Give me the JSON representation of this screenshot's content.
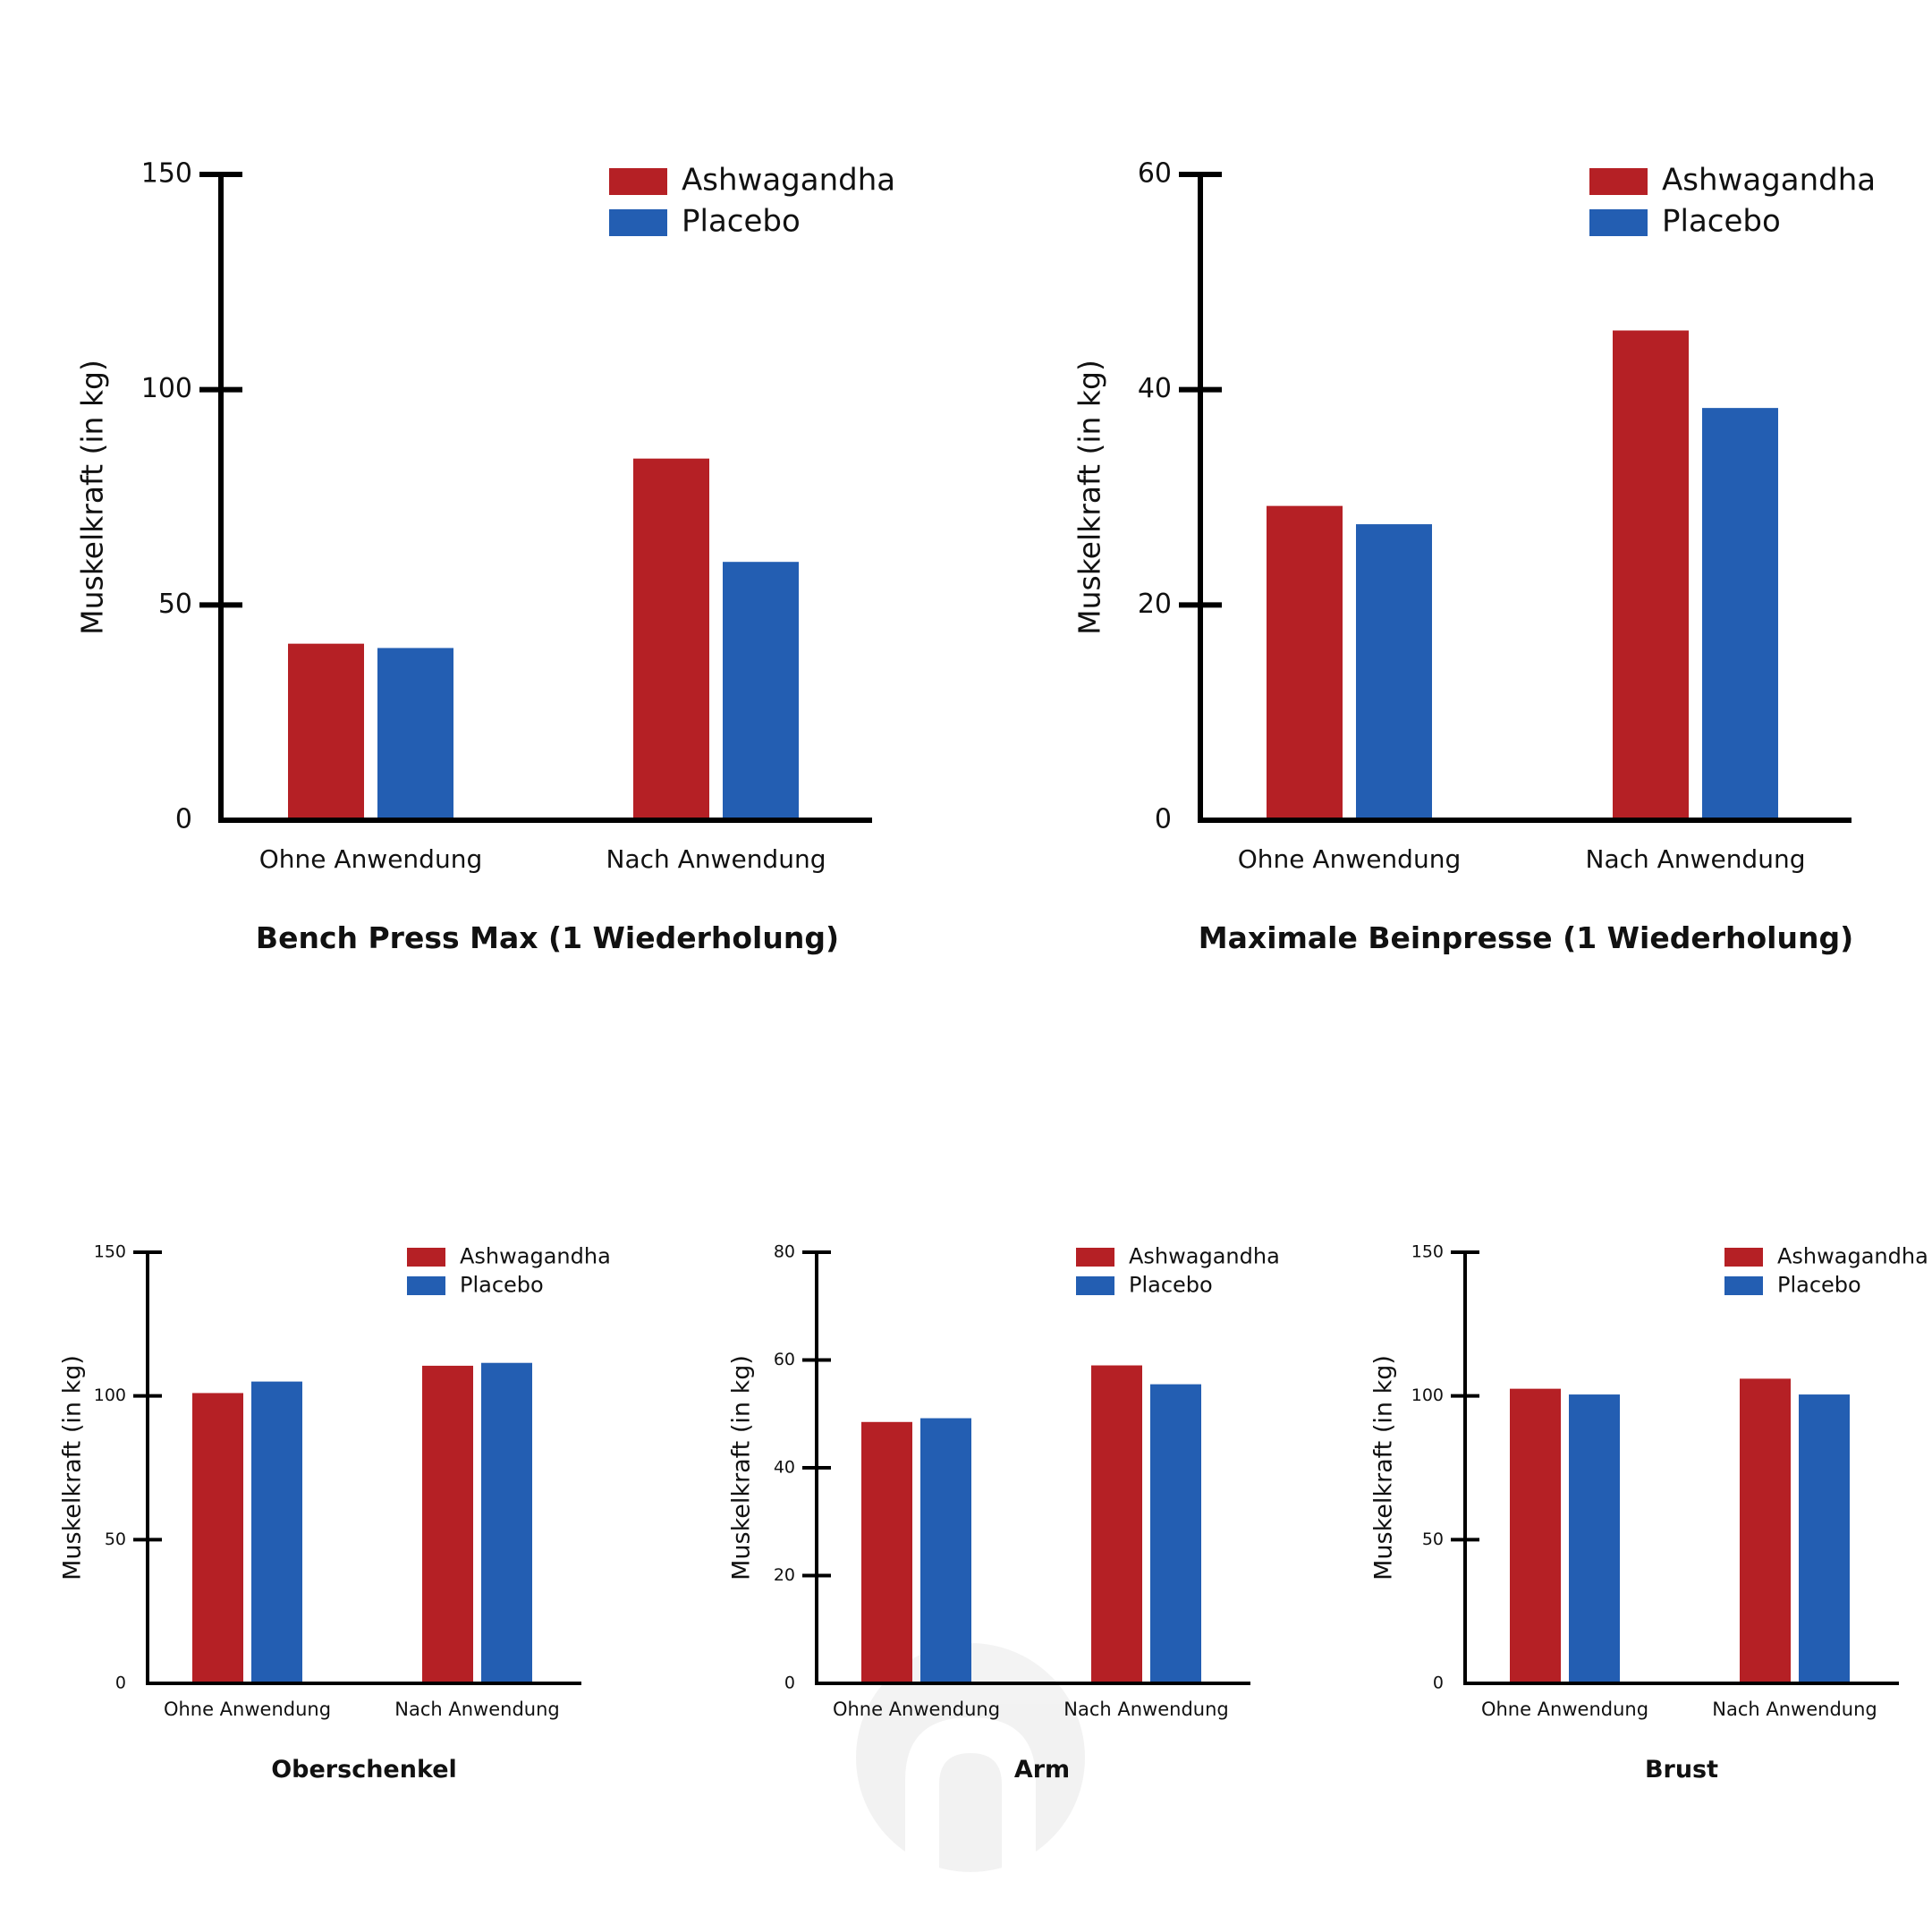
{
  "colors": {
    "ashwagandha": "#b52025",
    "placebo": "#235eb2",
    "axis": "#000000"
  },
  "chart_data": [
    {
      "type": "bar",
      "title": "Bench Press Max (1 Wiederholung)",
      "ylabel": "Muskelkraft (in kg)",
      "xlabel": "",
      "categories": [
        "Ohne Anwendung",
        "Nach Anwendung"
      ],
      "series": [
        {
          "name": "Ashwagandha",
          "values": [
            41,
            84
          ]
        },
        {
          "name": "Placebo",
          "values": [
            40,
            60
          ]
        }
      ],
      "ylim": [
        0,
        150
      ],
      "yticks": [
        0,
        50,
        100,
        150
      ],
      "legend": "top-right",
      "grid": false
    },
    {
      "type": "bar",
      "title": "Maximale Beinpresse (1 Wiederholung)",
      "ylabel": "Muskelkraft (in kg)",
      "xlabel": "",
      "categories": [
        "Ohne Anwendung",
        "Nach Anwendung"
      ],
      "series": [
        {
          "name": "Ashwagandha",
          "values": [
            29.2,
            45.5
          ]
        },
        {
          "name": "Placebo",
          "values": [
            27.5,
            38.3
          ]
        }
      ],
      "ylim": [
        0,
        60
      ],
      "yticks": [
        0,
        20,
        40,
        60
      ],
      "legend": "top-right",
      "grid": false
    },
    {
      "type": "bar",
      "title": "Oberschenkel",
      "ylabel": "Muskelkraft (in kg)",
      "xlabel": "",
      "categories": [
        "Ohne Anwendung",
        "Nach Anwendung"
      ],
      "series": [
        {
          "name": "Ashwagandha",
          "values": [
            101,
            110.5
          ]
        },
        {
          "name": "Placebo",
          "values": [
            105,
            111.5
          ]
        }
      ],
      "ylim": [
        0,
        150
      ],
      "yticks": [
        0,
        50,
        100,
        150
      ],
      "legend": "top-right",
      "grid": false
    },
    {
      "type": "bar",
      "title": "Arm",
      "ylabel": "Muskelkraft (in kg)",
      "xlabel": "",
      "categories": [
        "Ohne Anwendung",
        "Nach Anwendung"
      ],
      "series": [
        {
          "name": "Ashwagandha",
          "values": [
            48.5,
            59
          ]
        },
        {
          "name": "Placebo",
          "values": [
            49.2,
            55.5
          ]
        }
      ],
      "ylim": [
        0,
        80
      ],
      "yticks": [
        0,
        20,
        40,
        60,
        80
      ],
      "legend": "top-right",
      "grid": false
    },
    {
      "type": "bar",
      "title": "Brust",
      "ylabel": "Muskelkraft (in kg)",
      "xlabel": "",
      "categories": [
        "Ohne Anwendung",
        "Nach Anwendung"
      ],
      "series": [
        {
          "name": "Ashwagandha",
          "values": [
            102.5,
            106
          ]
        },
        {
          "name": "Placebo",
          "values": [
            100.5,
            100.5
          ]
        }
      ],
      "ylim": [
        0,
        150
      ],
      "yticks": [
        0,
        50,
        100,
        150
      ],
      "legend": "top-right",
      "grid": false
    }
  ]
}
